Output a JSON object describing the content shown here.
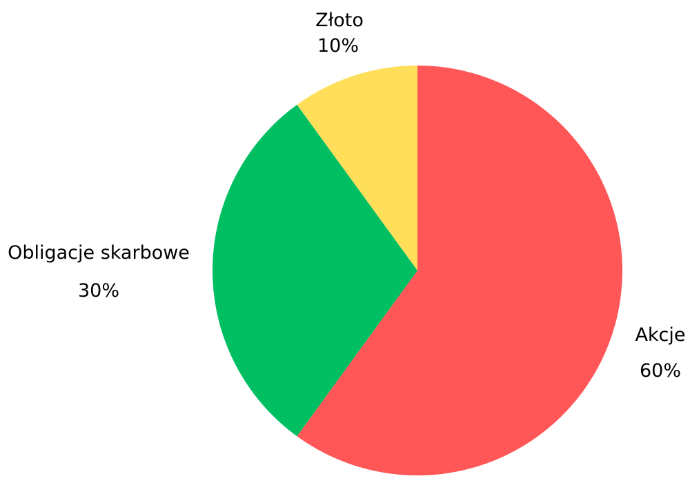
{
  "chart_data": {
    "type": "pie",
    "title": "",
    "start": "top",
    "direction": "clockwise",
    "slices": [
      {
        "label": "Akcje",
        "value": 60,
        "value_label": "60%",
        "color": "#FF5757"
      },
      {
        "label": "Obligacje skarbowe",
        "value": 30,
        "value_label": "30%",
        "color": "#00BF63"
      },
      {
        "label": "Złoto",
        "value": 10,
        "value_label": "10%",
        "color": "#FFDE59"
      }
    ],
    "legend": "none",
    "labels_placement": "outside"
  }
}
